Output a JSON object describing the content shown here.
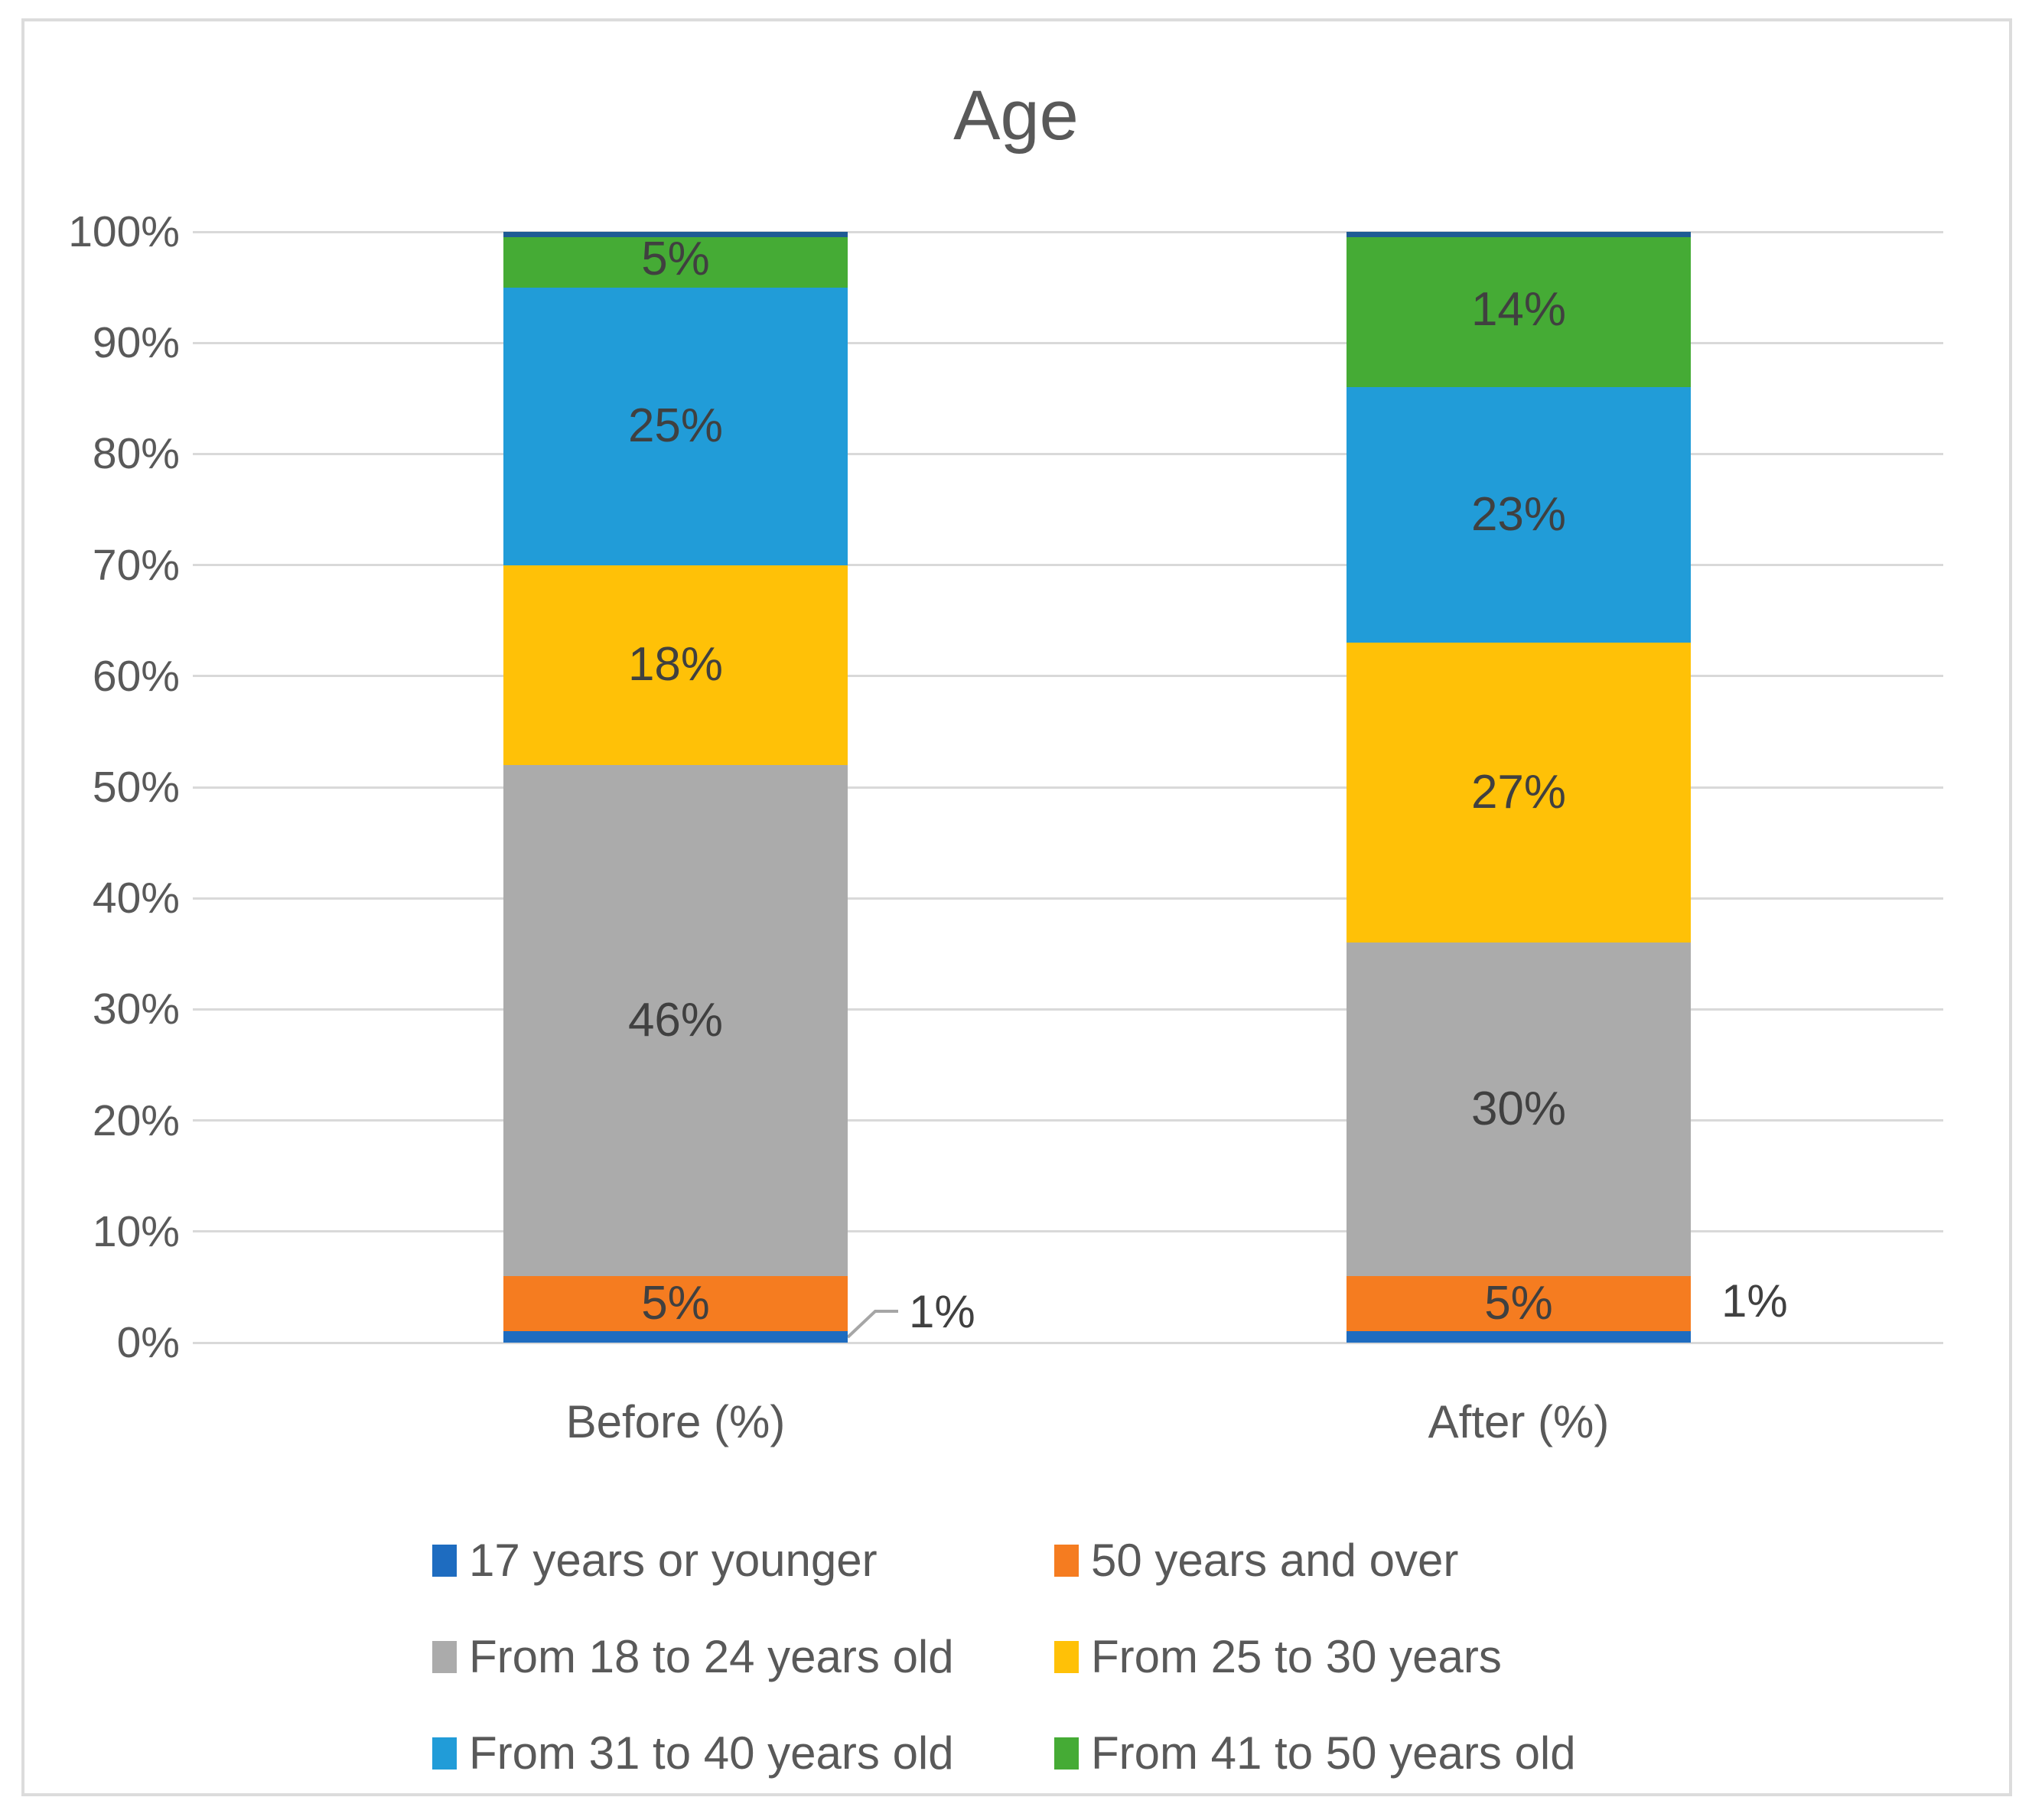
{
  "chart_data": {
    "type": "bar",
    "stacked": true,
    "percent_stacked": true,
    "title": "Age",
    "categories": [
      "Before (%)",
      "After (%)"
    ],
    "series": [
      {
        "name": "17 years or younger",
        "color": "#1E6CC0",
        "values": [
          1,
          1
        ],
        "label_placement": "outside-right"
      },
      {
        "name": "50 years and over",
        "color": "#F57C20",
        "values": [
          5,
          5
        ],
        "label_placement": "inside"
      },
      {
        "name": "From 18 to 24 years old",
        "color": "#ABABAB",
        "values": [
          46,
          30
        ],
        "label_placement": "inside"
      },
      {
        "name": "From 25 to 30 years",
        "color": "#FFC107",
        "values": [
          18,
          27
        ],
        "label_placement": "inside"
      },
      {
        "name": "From 31 to 40 years old",
        "color": "#219CD8",
        "values": [
          25,
          23
        ],
        "label_placement": "inside"
      },
      {
        "name": "From 41 to 50 years old",
        "color": "#45AB35",
        "values": [
          5,
          14
        ],
        "label_placement": "inside"
      }
    ],
    "data_label_format": "{value}%",
    "outside_labels": [
      "1%",
      "1%"
    ],
    "y_axis": {
      "min": 0,
      "max": 100,
      "step": 10,
      "tick_labels": [
        "0%",
        "10%",
        "20%",
        "30%",
        "40%",
        "50%",
        "60%",
        "70%",
        "80%",
        "90%",
        "100%"
      ]
    },
    "gridlines": true,
    "legend": {
      "position": "bottom",
      "columns": 2,
      "entries": [
        "17 years or younger",
        "50 years and over",
        "From 18 to 24 years old",
        "From 25 to 30 years",
        "From 31 to 40 years old",
        "From 41 to 50 years old"
      ]
    }
  },
  "colors": {
    "background": "#FFFFFF",
    "frame_border": "#DCDCDC",
    "gridline": "#D9D9D9",
    "title_text": "#595959",
    "axis_text": "#595959",
    "legend_text": "#595959",
    "data_label_text": "#404040",
    "bar_top_cap": "#1E5B94",
    "leader_line": "#A6A6A6"
  }
}
